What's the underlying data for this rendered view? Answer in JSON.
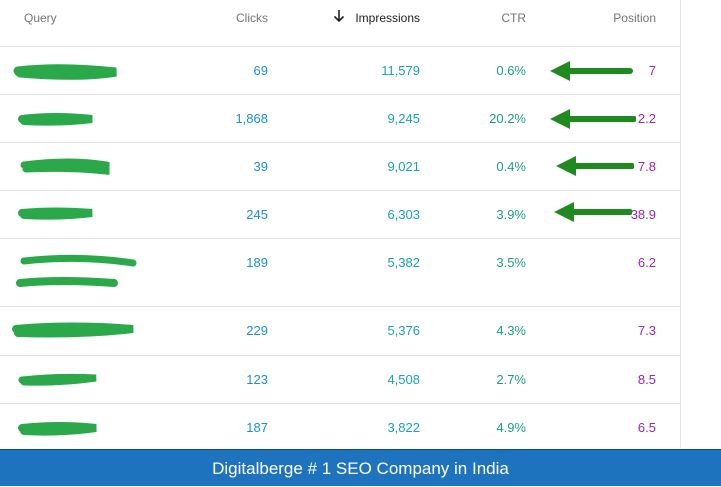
{
  "table": {
    "headers": {
      "query": "Query",
      "clicks": "Clicks",
      "impressions": "Impressions",
      "ctr": "CTR",
      "position": "Position"
    },
    "sort_icon": "arrow-down-icon",
    "rows": [
      {
        "clicks": "69",
        "impressions": "11,579",
        "ctr": "0.6%",
        "position": "7",
        "arrow": true
      },
      {
        "clicks": "1,868",
        "impressions": "9,245",
        "ctr": "20.2%",
        "position": "2.2",
        "arrow": true
      },
      {
        "clicks": "39",
        "impressions": "9,021",
        "ctr": "0.4%",
        "position": "7.8",
        "arrow": true
      },
      {
        "clicks": "245",
        "impressions": "6,303",
        "ctr": "3.9%",
        "position": "38.9",
        "arrow": true
      },
      {
        "clicks": "189",
        "impressions": "5,382",
        "ctr": "3.5%",
        "position": "6.2",
        "arrow": false
      },
      {
        "clicks": "229",
        "impressions": "5,376",
        "ctr": "4.3%",
        "position": "7.3",
        "arrow": false
      },
      {
        "clicks": "123",
        "impressions": "4,508",
        "ctr": "2.7%",
        "position": "8.5",
        "arrow": false
      },
      {
        "clicks": "187",
        "impressions": "3,822",
        "ctr": "4.9%",
        "position": "6.5",
        "arrow": false
      }
    ]
  },
  "banner": {
    "text": "Digitalberge # 1 SEO Company in India"
  },
  "colors": {
    "banner": "#1e73be",
    "scribble": "#2aa84a",
    "arrow": "#1f8a1f"
  }
}
